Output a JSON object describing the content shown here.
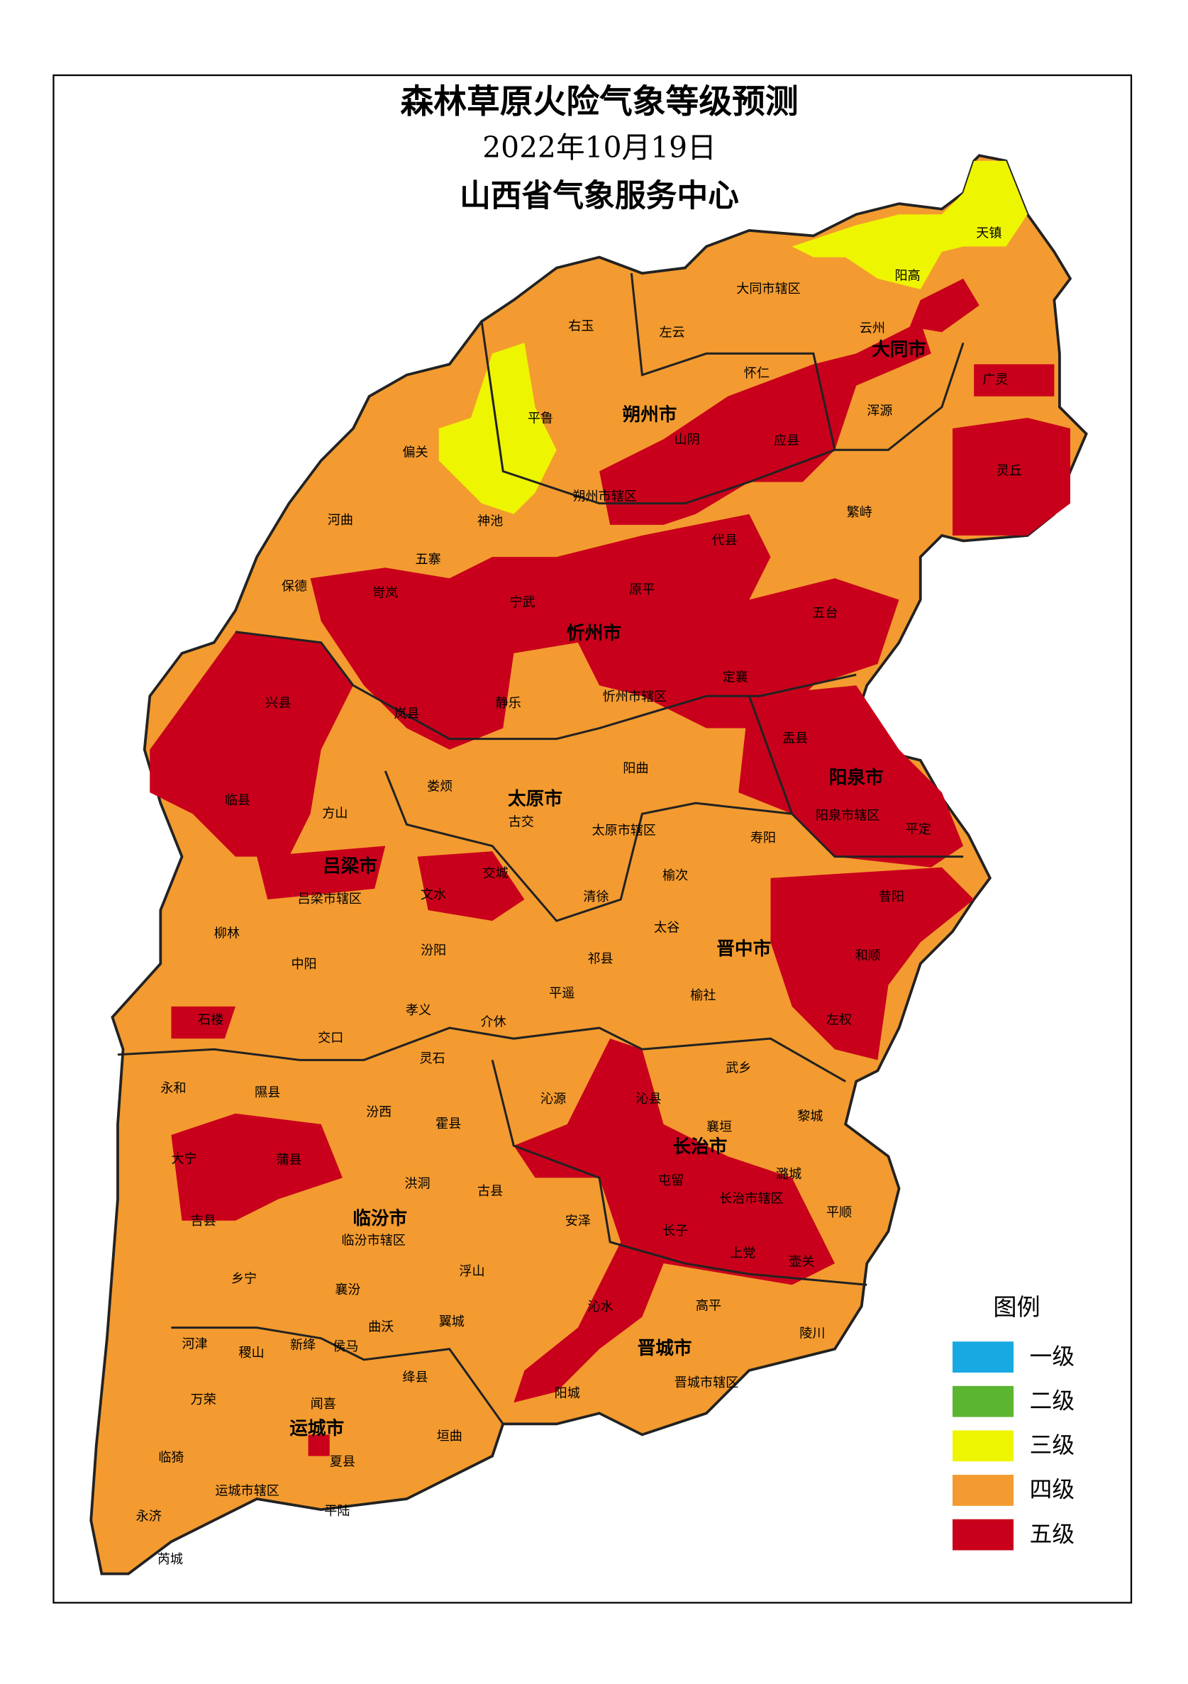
{
  "header": {
    "title": "森林草原火险气象等级预测",
    "date": "2022年10月19日",
    "issuer": "山西省气象服务中心"
  },
  "legend": {
    "title": "图例",
    "items": [
      {
        "label": "一级",
        "color": "#19a9e2"
      },
      {
        "label": "二级",
        "color": "#5cb531"
      },
      {
        "label": "三级",
        "color": "#eef500"
      },
      {
        "label": "四级",
        "color": "#f39b30"
      },
      {
        "label": "五级",
        "color": "#c9001b"
      }
    ]
  },
  "cities": [
    "大同市",
    "朔州市",
    "忻州市",
    "阳泉市",
    "太原市",
    "吕梁市",
    "晋中市",
    "长治市",
    "临汾市",
    "晋城市",
    "运城市"
  ],
  "counties": [
    "天镇",
    "阳高",
    "大同市辖区",
    "右玉",
    "左云",
    "云州",
    "怀仁",
    "广灵",
    "浑源",
    "平鲁",
    "偏关",
    "山阴",
    "应县",
    "灵丘",
    "朔州市辖区",
    "河曲",
    "神池",
    "繁峙",
    "代县",
    "五寨",
    "保德",
    "宁武",
    "原平",
    "五台",
    "岢岚",
    "兴县",
    "岚县",
    "静乐",
    "忻州市辖区",
    "定襄",
    "盂县",
    "阳曲",
    "娄烦",
    "方山",
    "古交",
    "临县",
    "阳泉市辖区",
    "平定",
    "太原市辖区",
    "寿阳",
    "交城",
    "文水",
    "清徐",
    "榆次",
    "昔阳",
    "吕梁市辖区",
    "柳林",
    "太谷",
    "汾阳",
    "和顺",
    "中阳",
    "祁县",
    "平遥",
    "榆社",
    "石楼",
    "孝义",
    "介休",
    "左权",
    "交口",
    "灵石",
    "武乡",
    "永和",
    "隰县",
    "汾西",
    "沁源",
    "沁县",
    "黎城",
    "霍县",
    "襄垣",
    "大宁",
    "蒲县",
    "潞城",
    "屯留",
    "洪洞",
    "古县",
    "长治市辖区",
    "平顺",
    "吉县",
    "安泽",
    "临汾市辖区",
    "长子",
    "上党",
    "壶关",
    "乡宁",
    "浮山",
    "襄汾",
    "高平",
    "曲沃",
    "沁水",
    "翼城",
    "陵川",
    "河津",
    "稷山",
    "新绛",
    "侯马",
    "绛县",
    "阳城",
    "晋城市辖区",
    "万荣",
    "闻喜",
    "垣曲",
    "临猗",
    "夏县",
    "运城市辖区",
    "平陆",
    "永济",
    "芮城"
  ]
}
